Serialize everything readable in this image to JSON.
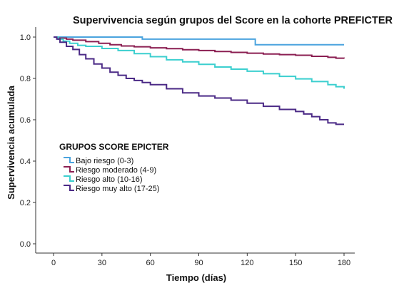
{
  "chart_data": {
    "type": "line",
    "title": "Supervivencia según grupos del Score en la cohorte PREFICTER",
    "xlabel": "Tiempo (días)",
    "ylabel": "Supervivencia acumulada",
    "xlim": [
      0,
      180
    ],
    "ylim": [
      0.0,
      1.0
    ],
    "xticks": [
      0,
      30,
      60,
      90,
      120,
      150,
      180
    ],
    "yticks": [
      0.0,
      0.2,
      0.4,
      0.6,
      0.8,
      1.0
    ],
    "grid": false,
    "legend_title": "GRUPOS SCORE EPICTER",
    "legend_position": "middle-left",
    "series": [
      {
        "name": "Bajo riesgo (0-3)",
        "color": "#4aa3de",
        "x": [
          0,
          50,
          55,
          120,
          125,
          180
        ],
        "y": [
          1.0,
          1.0,
          0.99,
          0.99,
          0.963,
          0.963
        ]
      },
      {
        "name": "Riesgo moderado (4-9)",
        "color": "#8b1f52",
        "x": [
          0,
          3,
          8,
          12,
          20,
          28,
          35,
          42,
          50,
          60,
          70,
          80,
          90,
          100,
          110,
          120,
          130,
          140,
          150,
          160,
          170,
          175,
          180
        ],
        "y": [
          1.0,
          0.995,
          0.99,
          0.985,
          0.978,
          0.97,
          0.963,
          0.957,
          0.953,
          0.948,
          0.944,
          0.939,
          0.935,
          0.93,
          0.926,
          0.922,
          0.918,
          0.915,
          0.912,
          0.907,
          0.902,
          0.898,
          0.896
        ]
      },
      {
        "name": "Riesgo alto (10-16)",
        "color": "#3ccfcf",
        "x": [
          0,
          3,
          6,
          10,
          15,
          20,
          30,
          40,
          50,
          60,
          70,
          80,
          90,
          100,
          110,
          120,
          130,
          140,
          150,
          160,
          170,
          175,
          180
        ],
        "y": [
          1.0,
          0.99,
          0.98,
          0.97,
          0.96,
          0.955,
          0.945,
          0.935,
          0.92,
          0.905,
          0.89,
          0.88,
          0.868,
          0.855,
          0.845,
          0.835,
          0.823,
          0.81,
          0.798,
          0.785,
          0.77,
          0.76,
          0.75
        ]
      },
      {
        "name": "Riesgo muy alto (17-25)",
        "color": "#4b2a86",
        "x": [
          0,
          2,
          4,
          8,
          12,
          16,
          20,
          25,
          30,
          35,
          40,
          45,
          50,
          55,
          60,
          70,
          80,
          90,
          100,
          110,
          120,
          130,
          140,
          150,
          155,
          160,
          165,
          170,
          175,
          180
        ],
        "y": [
          1.0,
          0.99,
          0.975,
          0.955,
          0.94,
          0.915,
          0.895,
          0.87,
          0.85,
          0.83,
          0.815,
          0.8,
          0.79,
          0.78,
          0.77,
          0.75,
          0.73,
          0.715,
          0.705,
          0.695,
          0.68,
          0.665,
          0.65,
          0.64,
          0.628,
          0.615,
          0.6,
          0.585,
          0.578,
          0.578
        ]
      }
    ]
  }
}
